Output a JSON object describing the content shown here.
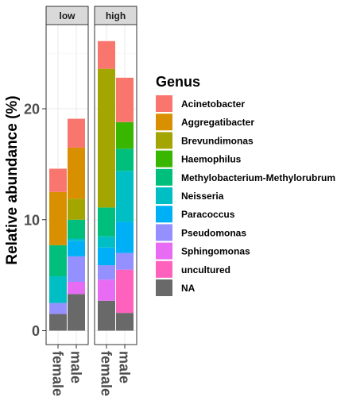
{
  "chart_data": {
    "type": "bar",
    "stacked": true,
    "ylabel": "Relative abundance (%)",
    "xlabel": "",
    "ylim": [
      0,
      28
    ],
    "yticks": [
      0,
      10,
      20
    ],
    "grid": true,
    "legend": {
      "title": "Genus",
      "position": "right"
    },
    "facets": [
      {
        "label": "low",
        "categories": [
          "female",
          "male"
        ]
      },
      {
        "label": "high",
        "categories": [
          "female",
          "male"
        ]
      }
    ],
    "series": [
      {
        "name": "Acinetobacter",
        "color": "#F8766D",
        "values": [
          [
            2.1,
            2.6
          ],
          [
            2.5,
            4.0
          ]
        ]
      },
      {
        "name": "Aggregatibacter",
        "color": "#D89000",
        "values": [
          [
            4.8,
            4.6
          ],
          [
            0,
            0
          ]
        ]
      },
      {
        "name": "Brevundimonas",
        "color": "#A3A500",
        "values": [
          [
            0,
            1.9
          ],
          [
            12.5,
            0
          ]
        ]
      },
      {
        "name": "Haemophilus",
        "color": "#39B600",
        "values": [
          [
            0,
            0
          ],
          [
            0,
            2.4
          ]
        ]
      },
      {
        "name": "Methylobacterium-Methylorubrum",
        "color": "#00BF7D",
        "values": [
          [
            2.8,
            1.7
          ],
          [
            2.6,
            2.0
          ]
        ]
      },
      {
        "name": "Neisseria",
        "color": "#00BFC4",
        "values": [
          [
            2.4,
            0.2
          ],
          [
            1.0,
            4.6
          ]
        ]
      },
      {
        "name": "Paracoccus",
        "color": "#00B0F6",
        "values": [
          [
            0,
            1.4
          ],
          [
            1.6,
            2.8
          ]
        ]
      },
      {
        "name": "Pseudomonas",
        "color": "#9590FF",
        "values": [
          [
            1.0,
            2.3
          ],
          [
            1.3,
            1.5
          ]
        ]
      },
      {
        "name": "Sphingomonas",
        "color": "#E76BF3",
        "values": [
          [
            0,
            1.1
          ],
          [
            1.9,
            0
          ]
        ]
      },
      {
        "name": "uncultured",
        "color": "#FF62BC",
        "values": [
          [
            0,
            0
          ],
          [
            0,
            3.9
          ]
        ]
      },
      {
        "name": "NA",
        "color": "#696969",
        "values": [
          [
            1.5,
            3.3
          ],
          [
            2.7,
            1.6
          ]
        ]
      }
    ]
  }
}
